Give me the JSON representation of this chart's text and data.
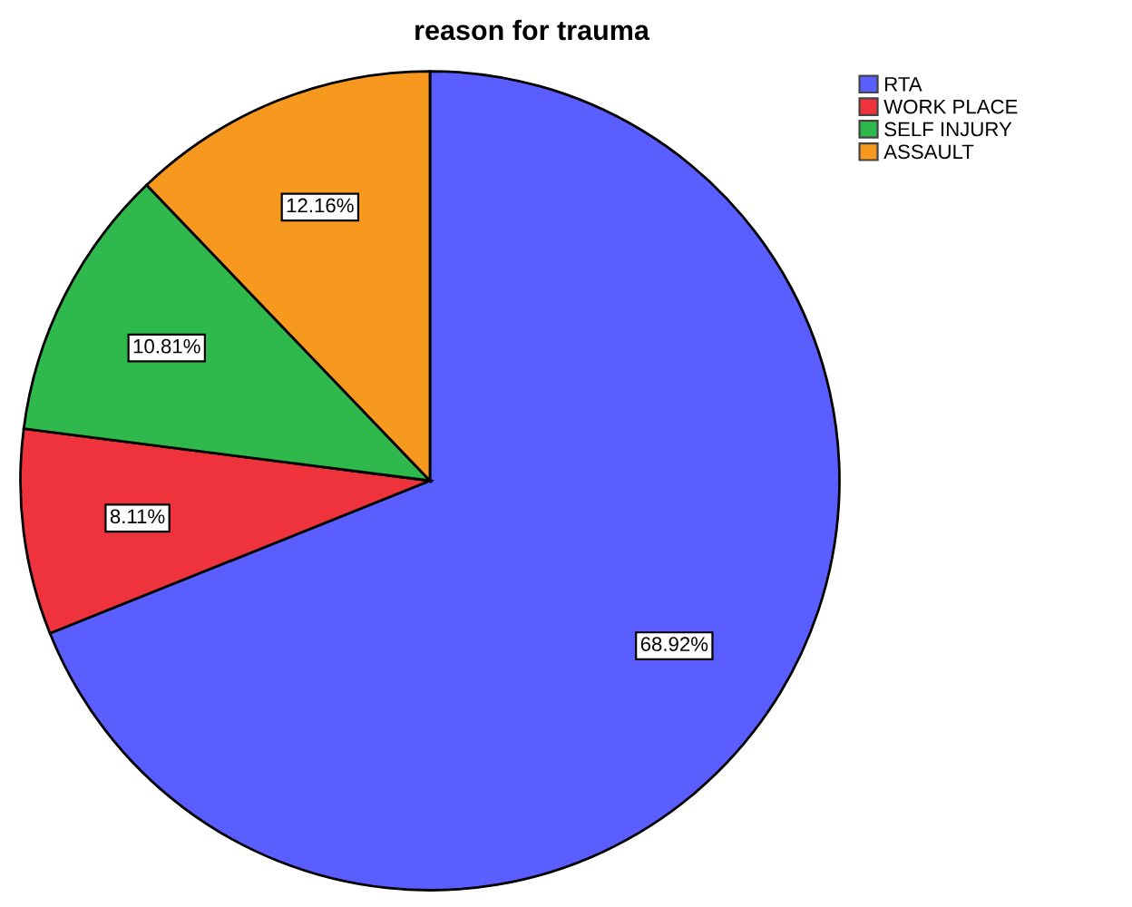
{
  "chart_data": {
    "type": "pie",
    "title": "reason for trauma",
    "categories": [
      "RTA",
      "WORK PLACE",
      "SELF INJURY",
      "ASSAULT"
    ],
    "values": [
      68.92,
      8.11,
      10.81,
      12.16
    ],
    "colors": [
      "#5a5eff",
      "#ef333d",
      "#2fb84b",
      "#f7991e"
    ],
    "value_labels": [
      "68.92%",
      "8.11%",
      "10.81%",
      "12.16%"
    ],
    "legend": "top right"
  }
}
